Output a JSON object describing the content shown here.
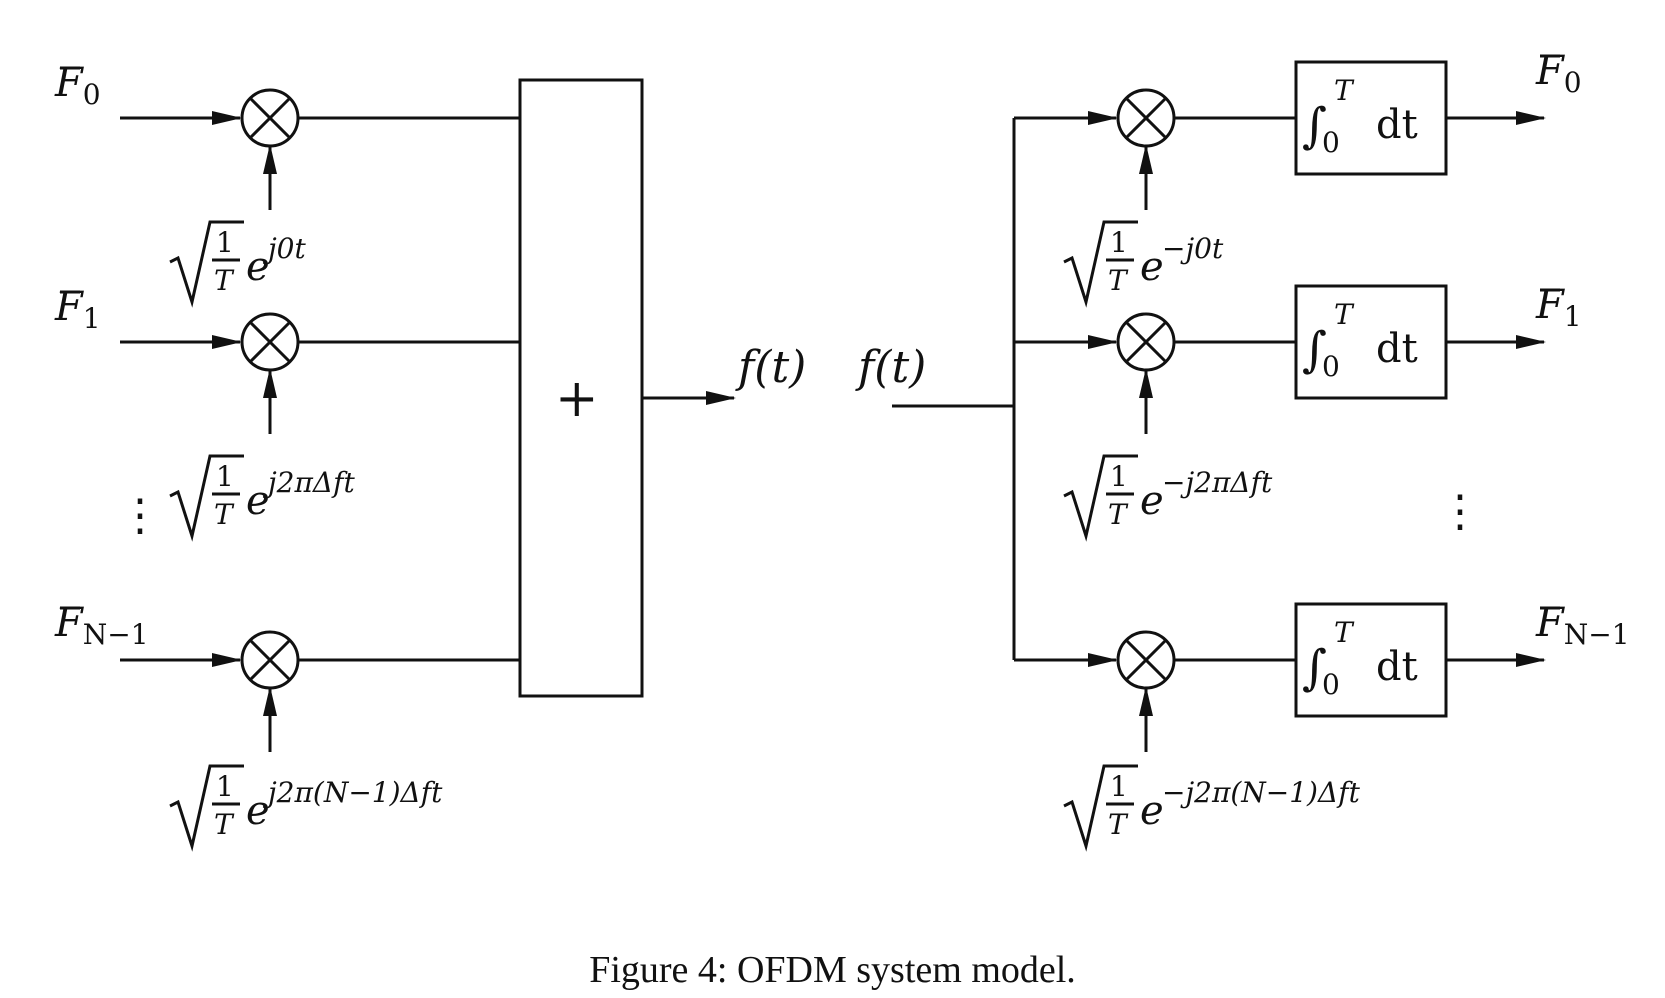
{
  "caption": "Figure 4: OFDM system model.",
  "transmitter": {
    "inputs": [
      {
        "symbol": "F",
        "sub": "0"
      },
      {
        "symbol": "F",
        "sub": "1"
      },
      {
        "symbol": "F",
        "sub": "N−1"
      }
    ],
    "carriers": [
      {
        "exponent": "j0t"
      },
      {
        "exponent": "j2πΔft"
      },
      {
        "exponent": "j2π(N−1)Δft"
      }
    ],
    "sum_symbol": "+",
    "output_label": "f(t)",
    "ellipsis": "⋮"
  },
  "receiver": {
    "input_label": "f(t)",
    "carriers": [
      {
        "exponent": "−j0t"
      },
      {
        "exponent": "−j2πΔft"
      },
      {
        "exponent": "−j2π(N−1)Δft"
      }
    ],
    "integrator": {
      "integral": "∫",
      "upper": "T",
      "lower": "0",
      "dt": "dt"
    },
    "outputs": [
      {
        "symbol": "F",
        "sub": "0"
      },
      {
        "symbol": "F",
        "sub": "1"
      },
      {
        "symbol": "F",
        "sub": "N−1"
      }
    ],
    "ellipsis": "⋮"
  },
  "scale_factor": {
    "numerator": "1",
    "denominator": "T",
    "base": "e"
  }
}
